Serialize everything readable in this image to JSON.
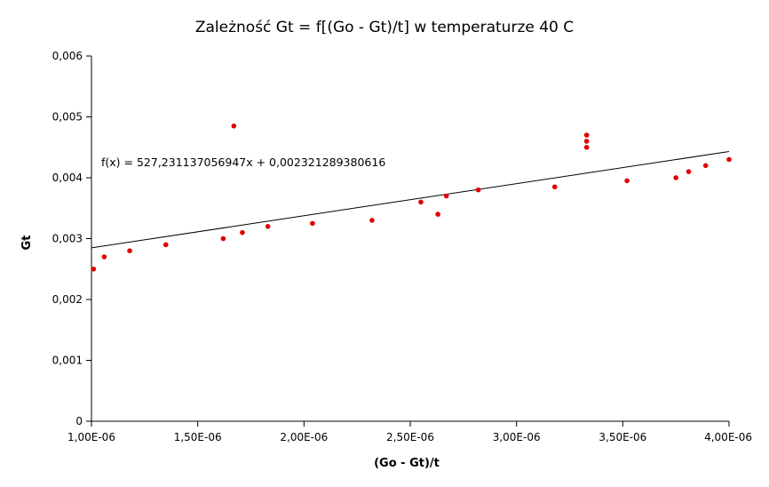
{
  "chart_data": {
    "type": "scatter",
    "title": "Zależność Gt = f[(Go - Gt)/t] w temperaturze 40 C",
    "xlabel": "(Go - Gt)/t",
    "ylabel": "Gt",
    "xlim": [
      1e-06,
      4e-06
    ],
    "ylim": [
      0,
      0.006
    ],
    "x_ticks": [
      1e-06,
      1.5e-06,
      2e-06,
      2.5e-06,
      3e-06,
      3.5e-06,
      4e-06
    ],
    "x_tick_labels": [
      "1,00E-06",
      "1,50E-06",
      "2,00E-06",
      "2,50E-06",
      "3,00E-06",
      "3,50E-06",
      "4,00E-06"
    ],
    "y_ticks": [
      0,
      0.001,
      0.002,
      0.003,
      0.004,
      0.005,
      0.006
    ],
    "y_tick_labels": [
      "0",
      "0,001",
      "0,002",
      "0,003",
      "0,004",
      "0,005",
      "0,006"
    ],
    "grid": false,
    "marker_color": "#e00000",
    "trendline_color": "#000000",
    "points": [
      {
        "x": 1.01e-06,
        "y": 0.0025
      },
      {
        "x": 1.06e-06,
        "y": 0.0027
      },
      {
        "x": 1.18e-06,
        "y": 0.0028
      },
      {
        "x": 1.35e-06,
        "y": 0.0029
      },
      {
        "x": 1.62e-06,
        "y": 0.003
      },
      {
        "x": 1.67e-06,
        "y": 0.00485
      },
      {
        "x": 1.71e-06,
        "y": 0.0031
      },
      {
        "x": 1.83e-06,
        "y": 0.0032
      },
      {
        "x": 2.04e-06,
        "y": 0.00325
      },
      {
        "x": 2.32e-06,
        "y": 0.0033
      },
      {
        "x": 2.55e-06,
        "y": 0.0036
      },
      {
        "x": 2.63e-06,
        "y": 0.0034
      },
      {
        "x": 2.67e-06,
        "y": 0.0037
      },
      {
        "x": 2.82e-06,
        "y": 0.0038
      },
      {
        "x": 3.18e-06,
        "y": 0.00385
      },
      {
        "x": 3.33e-06,
        "y": 0.0045
      },
      {
        "x": 3.33e-06,
        "y": 0.0046
      },
      {
        "x": 3.33e-06,
        "y": 0.0047
      },
      {
        "x": 3.52e-06,
        "y": 0.00395
      },
      {
        "x": 3.75e-06,
        "y": 0.004
      },
      {
        "x": 3.81e-06,
        "y": 0.0041
      },
      {
        "x": 3.89e-06,
        "y": 0.0042
      },
      {
        "x": 4e-06,
        "y": 0.0043
      }
    ],
    "trendline": {
      "slope": 527.231137056947,
      "intercept": 0.002321289380616,
      "equation": "f(x) = 527,231137056947x + 0,002321289380616"
    }
  }
}
